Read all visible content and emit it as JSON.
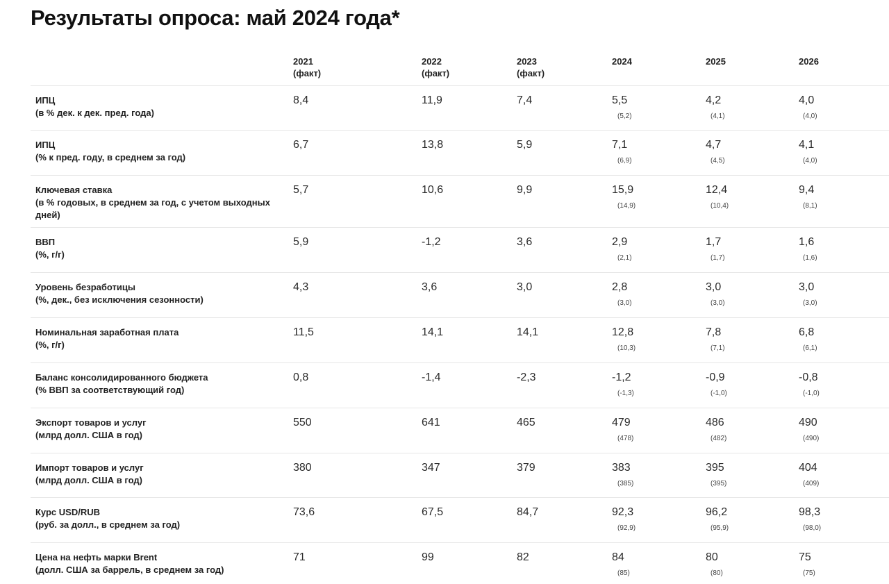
{
  "title": "Результаты опроса: май 2024 года*",
  "columns": [
    {
      "year": "2021",
      "note": "(факт)"
    },
    {
      "year": "2022",
      "note": "(факт)"
    },
    {
      "year": "2023",
      "note": "(факт)"
    },
    {
      "year": "2024",
      "note": ""
    },
    {
      "year": "2025",
      "note": ""
    },
    {
      "year": "2026",
      "note": ""
    }
  ],
  "rows": [
    {
      "name": "ИПЦ",
      "unit": "(в % дек. к дек. пред. года)",
      "values": [
        "8,4",
        "11,9",
        "7,4",
        "5,5",
        "4,2",
        "4,0"
      ],
      "prev": [
        "(5,2)",
        "(4,1)",
        "(4,0)"
      ]
    },
    {
      "name": "ИПЦ",
      "unit": "(% к пред. году, в среднем за год)",
      "values": [
        "6,7",
        "13,8",
        "5,9",
        "7,1",
        "4,7",
        "4,1"
      ],
      "prev": [
        "(6,9)",
        "(4,5)",
        "(4,0)"
      ]
    },
    {
      "name": "Ключевая ставка",
      "unit": "(в % годовых, в среднем за год, с учетом выходных дней)",
      "values": [
        "5,7",
        "10,6",
        "9,9",
        "15,9",
        "12,4",
        "9,4"
      ],
      "prev": [
        "(14,9)",
        "(10,4)",
        "(8,1)"
      ]
    },
    {
      "name": "ВВП",
      "unit": "(%, г/г)",
      "values": [
        "5,9",
        "-1,2",
        "3,6",
        "2,9",
        "1,7",
        "1,6"
      ],
      "prev": [
        "(2,1)",
        "(1,7)",
        "(1,6)"
      ]
    },
    {
      "name": "Уровень безработицы",
      "unit": "(%, дек., без исключения сезонности)",
      "values": [
        "4,3",
        "3,6",
        "3,0",
        "2,8",
        "3,0",
        "3,0"
      ],
      "prev": [
        "(3,0)",
        "(3,0)",
        "(3,0)"
      ]
    },
    {
      "name": "Номинальная заработная плата",
      "unit": "(%, г/г)",
      "values": [
        "11,5",
        "14,1",
        "14,1",
        "12,8",
        "7,8",
        "6,8"
      ],
      "prev": [
        "(10,3)",
        "(7,1)",
        "(6,1)"
      ]
    },
    {
      "name": "Баланс консолидированного бюджета",
      "unit": "(% ВВП за соответствующий год)",
      "values": [
        "0,8",
        "-1,4",
        "-2,3",
        "-1,2",
        "-0,9",
        "-0,8"
      ],
      "prev": [
        "(-1,3)",
        "(-1,0)",
        "(-1,0)"
      ]
    },
    {
      "name": "Экспорт товаров и услуг",
      "unit": "(млрд долл. США в год)",
      "values": [
        "550",
        "641",
        "465",
        "479",
        "486",
        "490"
      ],
      "prev": [
        "(478)",
        "(482)",
        "(490)"
      ]
    },
    {
      "name": "Импорт товаров и услуг",
      "unit": "(млрд долл. США в год)",
      "values": [
        "380",
        "347",
        "379",
        "383",
        "395",
        "404"
      ],
      "prev": [
        "(385)",
        "(395)",
        "(409)"
      ]
    },
    {
      "name": "Курс USD/RUB",
      "unit": "(руб. за долл., в среднем за год)",
      "values": [
        "73,6",
        "67,5",
        "84,7",
        "92,3",
        "96,2",
        "98,3"
      ],
      "prev": [
        "(92,9)",
        "(95,9)",
        "(98,0)"
      ]
    },
    {
      "name": "Цена на нефть марки Brent",
      "unit": "(долл. США за баррель, в среднем за год)",
      "values": [
        "71",
        "99",
        "82",
        "84",
        "80",
        "75"
      ],
      "prev": [
        "(85)",
        "(80)",
        "(75)"
      ]
    }
  ]
}
